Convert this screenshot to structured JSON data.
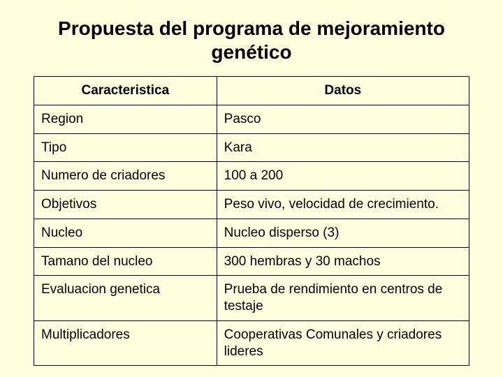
{
  "title": "Propuesta del programa de mejoramiento genético",
  "table": {
    "type": "table",
    "background_color": "#ffffe0",
    "border_color": "#000000",
    "text_color": "#000000",
    "header_fontsize": 19,
    "cell_fontsize": 19,
    "column_widths_pct": [
      42,
      58
    ],
    "columns": [
      "Caracteristica",
      "Datos"
    ],
    "rows": [
      [
        "Region",
        "Pasco"
      ],
      [
        "Tipo",
        "Kara"
      ],
      [
        "Numero de criadores",
        "100 a 200"
      ],
      [
        "Objetivos",
        "Peso vivo, velocidad de crecimiento."
      ],
      [
        "Nucleo",
        "Nucleo disperso (3)"
      ],
      [
        "Tamano del nucleo",
        "300 hembras y 30 machos"
      ],
      [
        "Evaluacion genetica",
        "Prueba de rendimiento en centros de testaje"
      ],
      [
        "Multiplicadores",
        "Cooperativas Comunales y criadores lideres"
      ]
    ]
  }
}
